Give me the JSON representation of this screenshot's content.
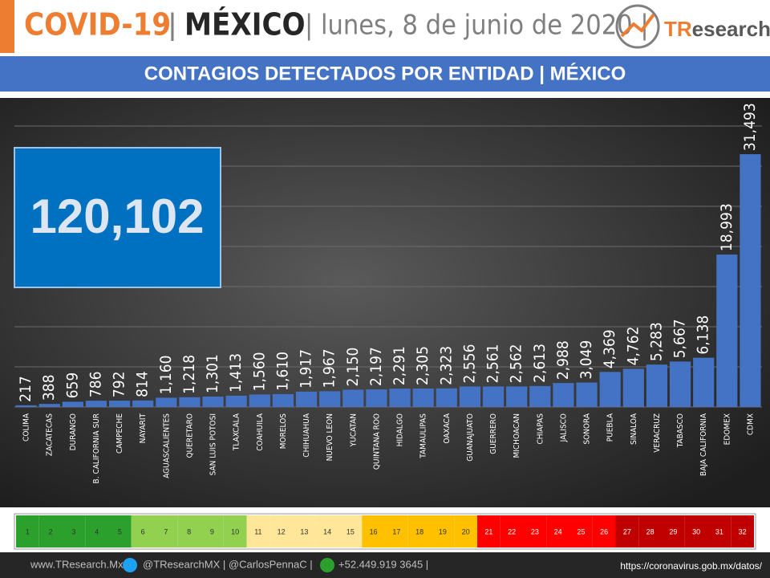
{
  "header": {
    "covid": "COVID-19",
    "sep1": "|",
    "country": "MÉXICO",
    "date": "| lunes, 8 de junio de 2020 |",
    "logo_a": "TR",
    "logo_b": "esearch"
  },
  "total": "120,102",
  "chart_data": {
    "type": "bar",
    "title": "CONTAGIOS DETECTADOS POR ENTIDAD | MÉXICO",
    "color": "#4472c4",
    "categories": [
      "COLIMA",
      "ZACATECAS",
      "DURANGO",
      "B. CALIFORNIA SUR",
      "CAMPECHE",
      "NAYARIT",
      "AGUASCALIENTES",
      "QUERETARO",
      "SAN LUIS POTOSI",
      "TLAXCALA",
      "COAHUILA",
      "MORELOS",
      "CHIHUAHUA",
      "NUEVO LEON",
      "YUCATAN",
      "QUINTANA ROO",
      "HIDALGO",
      "TAMAULIPAS",
      "OAXACA",
      "GUANAJUATO",
      "GUERRERO",
      "MICHOACAN",
      "CHIAPAS",
      "JALISCO",
      "SONORA",
      "PUEBLA",
      "SINALOA",
      "VERACRUZ",
      "TABASCO",
      "BAJA CALIFORNIA",
      "EDOMEX",
      "CDMX"
    ],
    "values": [
      217,
      388,
      659,
      786,
      792,
      814,
      1160,
      1218,
      1301,
      1413,
      1560,
      1610,
      1917,
      1967,
      2150,
      2197,
      2291,
      2305,
      2323,
      2556,
      2561,
      2562,
      2613,
      2988,
      3049,
      4369,
      4762,
      5283,
      5667,
      6138,
      18993,
      31493
    ],
    "value_labels": [
      "217",
      "388",
      "659",
      "786",
      "792",
      "814",
      "1,160",
      "1,218",
      "1,301",
      "1,413",
      "1,560",
      "1,610",
      "1,917",
      "1,967",
      "2,150",
      "2,197",
      "2,291",
      "2,305",
      "2,323",
      "2,556",
      "2,561",
      "2,562",
      "2,613",
      "2,988",
      "3,049",
      "4,369",
      "4,762",
      "5,283",
      "5,667",
      "6,138",
      "18,993",
      "31,493"
    ],
    "ylim": [
      0,
      35000
    ],
    "yticks": [
      0,
      5000,
      10000,
      15000,
      20000,
      25000,
      30000,
      35000
    ],
    "grid": true
  },
  "scale": {
    "values": [
      1,
      2,
      3,
      4,
      5,
      6,
      7,
      8,
      9,
      10,
      11,
      12,
      13,
      14,
      15,
      16,
      17,
      18,
      19,
      20,
      21,
      22,
      23,
      24,
      25,
      26,
      27,
      28,
      29,
      30,
      31,
      32
    ],
    "colors": [
      "#2ca02c",
      "#2ca02c",
      "#2ca02c",
      "#2ca02c",
      "#2ca02c",
      "#92d050",
      "#92d050",
      "#92d050",
      "#92d050",
      "#92d050",
      "#ffe699",
      "#ffe699",
      "#ffe699",
      "#ffe699",
      "#ffe699",
      "#ffc000",
      "#ffc000",
      "#ffc000",
      "#ffc000",
      "#ffc000",
      "#ff0000",
      "#ff0000",
      "#ff0000",
      "#ff0000",
      "#ff0000",
      "#ff0000",
      "#c00000",
      "#c00000",
      "#c00000",
      "#c00000",
      "#c00000",
      "#c00000"
    ]
  },
  "footer": {
    "site": "www.TResearch.Mx  |",
    "twitter": "@TResearchMX  |  @CarlosPennaC  |",
    "phone": "+52.449.919 3645  |",
    "source": "https://coronavirus.gob.mx/datos/"
  }
}
